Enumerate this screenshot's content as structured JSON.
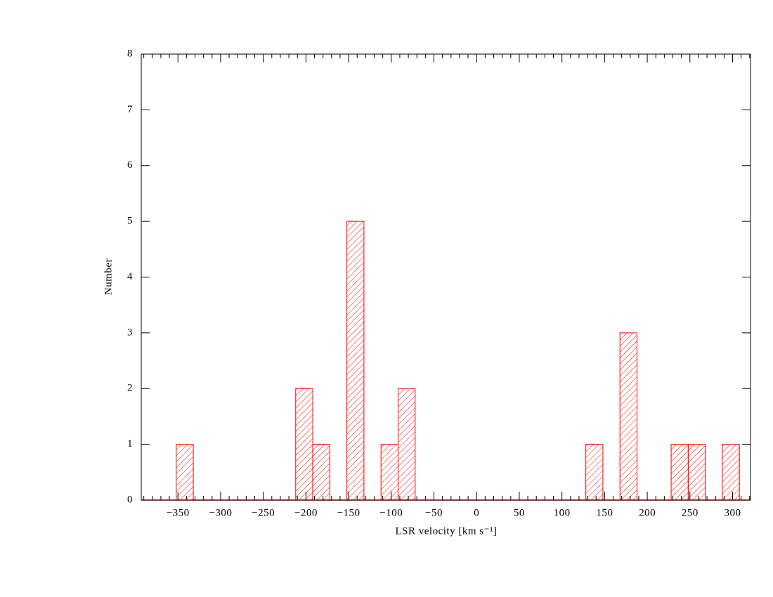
{
  "chart_data": {
    "type": "histogram",
    "xlabel": "LSR velocity [km s⁻¹]",
    "ylabel": "Number",
    "bins": [
      -352,
      -332,
      -312,
      -292,
      -272,
      -252,
      -232,
      -212,
      -192,
      -172,
      -152,
      -132,
      -112,
      -92,
      -72,
      -52,
      -32,
      -12,
      8,
      28,
      48,
      68,
      88,
      108,
      128,
      148,
      168,
      188,
      208,
      228,
      248,
      268,
      288,
      308
    ],
    "values": [
      1,
      0,
      0,
      0,
      0,
      0,
      0,
      2,
      1,
      0,
      5,
      0,
      1,
      2,
      0,
      0,
      0,
      0,
      0,
      0,
      0,
      0,
      0,
      0,
      1,
      0,
      3,
      0,
      0,
      1,
      1,
      0,
      1
    ],
    "color": "#ff0000",
    "hatch": true,
    "xlim": [
      -393,
      321
    ],
    "ylim": [
      0,
      8
    ],
    "xticks": [
      {
        "value": -350,
        "label": "−350"
      },
      {
        "value": -300,
        "label": "−300"
      },
      {
        "value": -250,
        "label": "−250"
      },
      {
        "value": -200,
        "label": "−200"
      },
      {
        "value": -150,
        "label": "−150"
      },
      {
        "value": -100,
        "label": "−100"
      },
      {
        "value": -50,
        "label": "−50"
      },
      0,
      50,
      100,
      150,
      200,
      250,
      300
    ],
    "yticks": [
      0,
      1,
      2,
      3,
      4,
      5,
      6,
      7,
      8
    ]
  }
}
